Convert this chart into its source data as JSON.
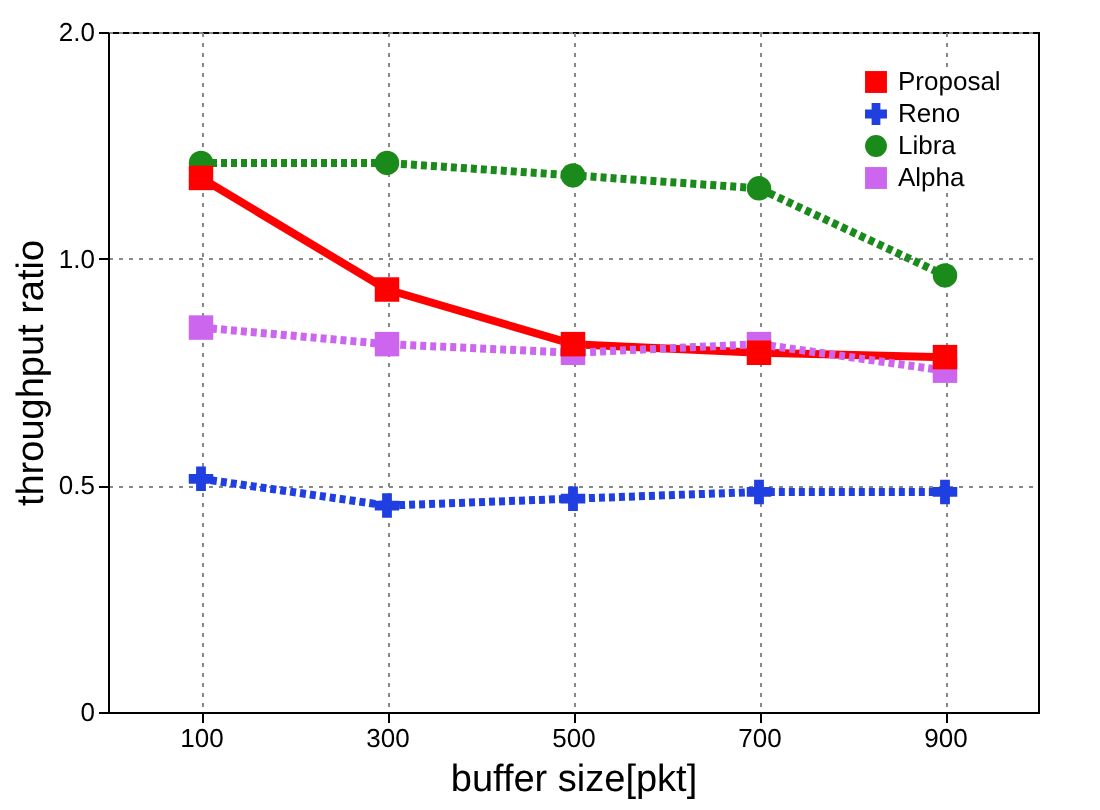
{
  "chart_data": {
    "type": "line",
    "xlabel": "buffer  size[pkt]",
    "ylabel": "throughput ratio",
    "categories": [
      "100",
      "300",
      "500",
      "700",
      "900"
    ],
    "series": [
      {
        "name": "Proposal",
        "color": "#ff0000",
        "marker": "square",
        "line_style": "solid",
        "values": [
          1.28,
          0.91,
          0.77,
          0.75,
          0.74
        ]
      },
      {
        "name": "Reno",
        "color": "#1f3fe0",
        "marker": "cross",
        "line_style": "dotted",
        "values": [
          0.51,
          0.47,
          0.48,
          0.49,
          0.49
        ]
      },
      {
        "name": "Libra",
        "color": "#1a8a1a",
        "marker": "circle",
        "line_style": "dotted",
        "values": [
          1.34,
          1.34,
          1.29,
          1.24,
          0.95
        ]
      },
      {
        "name": "Alpha",
        "color": "#cc66ee",
        "marker": "square",
        "line_style": "dotted",
        "values": [
          0.81,
          0.77,
          0.75,
          0.77,
          0.71
        ]
      }
    ],
    "log": "y",
    "ylim": [
      0.25,
      2
    ],
    "yticks": [
      {
        "value": 0.25,
        "label": "0"
      },
      0.5,
      {
        "value": 1,
        "label": "1.0"
      },
      {
        "value": 2,
        "label": "2.0"
      }
    ],
    "grid": true,
    "legend": "top right"
  }
}
